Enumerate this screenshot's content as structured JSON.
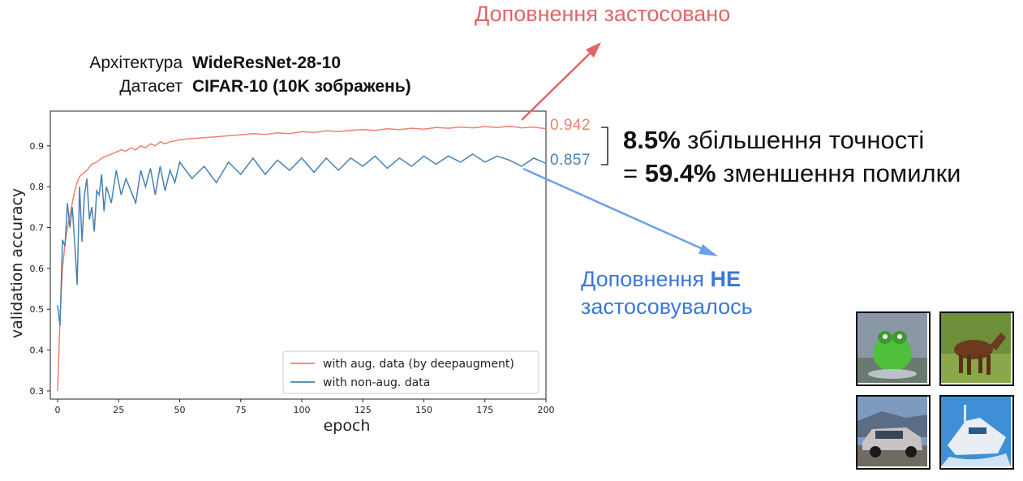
{
  "meta": {
    "architecture_label": "Архітектура",
    "architecture_value": "WideResNet-28-10",
    "dataset_label": "Датасет",
    "dataset_value": "CIFAR-10 (10K зображень)"
  },
  "annotations": {
    "aug_applied": "Доповнення застосовано",
    "noaug_line1_prefix": "Доповнення ",
    "noaug_line1_bold": "НЕ",
    "noaug_line2": "застосовувалось",
    "final_aug": "0.942",
    "final_noaug": "0.857",
    "stat1_bold": "8.5%",
    "stat1_rest": " збільшення точності",
    "stat2_prefix": "= ",
    "stat2_bold": "59.4%",
    "stat2_rest": " зменшення помилки"
  },
  "colors": {
    "aug": "#f08070",
    "noaug": "#4682b4",
    "aug_annotation": "#e06666",
    "noaug_annotation": "#3c78d8"
  },
  "thumbnails": [
    "frog-icon",
    "horse-icon",
    "car-icon",
    "boat-icon"
  ],
  "chart_data": {
    "type": "line",
    "title": "",
    "xlabel": "epoch",
    "ylabel": "validation accuracy",
    "xlim": [
      -3,
      200
    ],
    "ylim": [
      0.28,
      0.985
    ],
    "xticks": [
      0,
      25,
      50,
      75,
      100,
      125,
      150,
      175,
      200
    ],
    "yticks": [
      0.3,
      0.4,
      0.5,
      0.6,
      0.7,
      0.8,
      0.9
    ],
    "grid": false,
    "legend_position": "lower-right",
    "series": [
      {
        "name": "with aug. data (by deepaugment)",
        "points": [
          [
            0,
            0.3
          ],
          [
            1,
            0.48
          ],
          [
            2,
            0.6
          ],
          [
            3,
            0.66
          ],
          [
            4,
            0.7
          ],
          [
            5,
            0.73
          ],
          [
            6,
            0.76
          ],
          [
            7,
            0.79
          ],
          [
            8,
            0.81
          ],
          [
            9,
            0.825
          ],
          [
            10,
            0.83
          ],
          [
            12,
            0.84
          ],
          [
            14,
            0.855
          ],
          [
            16,
            0.86
          ],
          [
            18,
            0.87
          ],
          [
            20,
            0.875
          ],
          [
            22,
            0.88
          ],
          [
            24,
            0.885
          ],
          [
            26,
            0.89
          ],
          [
            28,
            0.887
          ],
          [
            30,
            0.895
          ],
          [
            32,
            0.89
          ],
          [
            34,
            0.9
          ],
          [
            36,
            0.895
          ],
          [
            38,
            0.905
          ],
          [
            40,
            0.9
          ],
          [
            42,
            0.91
          ],
          [
            44,
            0.905
          ],
          [
            46,
            0.91
          ],
          [
            48,
            0.912
          ],
          [
            50,
            0.915
          ],
          [
            55,
            0.918
          ],
          [
            60,
            0.92
          ],
          [
            65,
            0.922
          ],
          [
            70,
            0.925
          ],
          [
            75,
            0.927
          ],
          [
            80,
            0.93
          ],
          [
            85,
            0.928
          ],
          [
            90,
            0.932
          ],
          [
            95,
            0.93
          ],
          [
            100,
            0.935
          ],
          [
            105,
            0.933
          ],
          [
            110,
            0.937
          ],
          [
            115,
            0.935
          ],
          [
            120,
            0.938
          ],
          [
            125,
            0.94
          ],
          [
            130,
            0.938
          ],
          [
            135,
            0.942
          ],
          [
            140,
            0.94
          ],
          [
            145,
            0.943
          ],
          [
            150,
            0.941
          ],
          [
            155,
            0.945
          ],
          [
            160,
            0.943
          ],
          [
            165,
            0.946
          ],
          [
            170,
            0.944
          ],
          [
            175,
            0.947
          ],
          [
            180,
            0.945
          ],
          [
            185,
            0.948
          ],
          [
            190,
            0.944
          ],
          [
            195,
            0.946
          ],
          [
            200,
            0.942
          ]
        ]
      },
      {
        "name": "with non-aug. data",
        "points": [
          [
            0,
            0.51
          ],
          [
            1,
            0.46
          ],
          [
            2,
            0.67
          ],
          [
            3,
            0.655
          ],
          [
            4,
            0.76
          ],
          [
            5,
            0.7
          ],
          [
            6,
            0.75
          ],
          [
            7,
            0.66
          ],
          [
            8,
            0.56
          ],
          [
            9,
            0.8
          ],
          [
            10,
            0.665
          ],
          [
            11,
            0.78
          ],
          [
            12,
            0.82
          ],
          [
            13,
            0.72
          ],
          [
            14,
            0.75
          ],
          [
            15,
            0.69
          ],
          [
            16,
            0.79
          ],
          [
            17,
            0.78
          ],
          [
            18,
            0.83
          ],
          [
            19,
            0.74
          ],
          [
            20,
            0.8
          ],
          [
            22,
            0.76
          ],
          [
            24,
            0.84
          ],
          [
            26,
            0.78
          ],
          [
            28,
            0.82
          ],
          [
            30,
            0.79
          ],
          [
            32,
            0.76
          ],
          [
            34,
            0.84
          ],
          [
            36,
            0.8
          ],
          [
            38,
            0.845
          ],
          [
            40,
            0.78
          ],
          [
            42,
            0.85
          ],
          [
            44,
            0.79
          ],
          [
            46,
            0.84
          ],
          [
            48,
            0.81
          ],
          [
            50,
            0.86
          ],
          [
            55,
            0.82
          ],
          [
            60,
            0.85
          ],
          [
            65,
            0.81
          ],
          [
            70,
            0.86
          ],
          [
            75,
            0.83
          ],
          [
            80,
            0.87
          ],
          [
            85,
            0.83
          ],
          [
            90,
            0.865
          ],
          [
            95,
            0.84
          ],
          [
            100,
            0.87
          ],
          [
            105,
            0.835
          ],
          [
            110,
            0.87
          ],
          [
            115,
            0.84
          ],
          [
            120,
            0.87
          ],
          [
            125,
            0.85
          ],
          [
            130,
            0.875
          ],
          [
            135,
            0.845
          ],
          [
            140,
            0.87
          ],
          [
            145,
            0.85
          ],
          [
            150,
            0.875
          ],
          [
            155,
            0.855
          ],
          [
            160,
            0.875
          ],
          [
            165,
            0.86
          ],
          [
            170,
            0.88
          ],
          [
            175,
            0.86
          ],
          [
            180,
            0.875
          ],
          [
            185,
            0.865
          ],
          [
            190,
            0.85
          ],
          [
            195,
            0.87
          ],
          [
            200,
            0.857
          ]
        ]
      }
    ]
  }
}
